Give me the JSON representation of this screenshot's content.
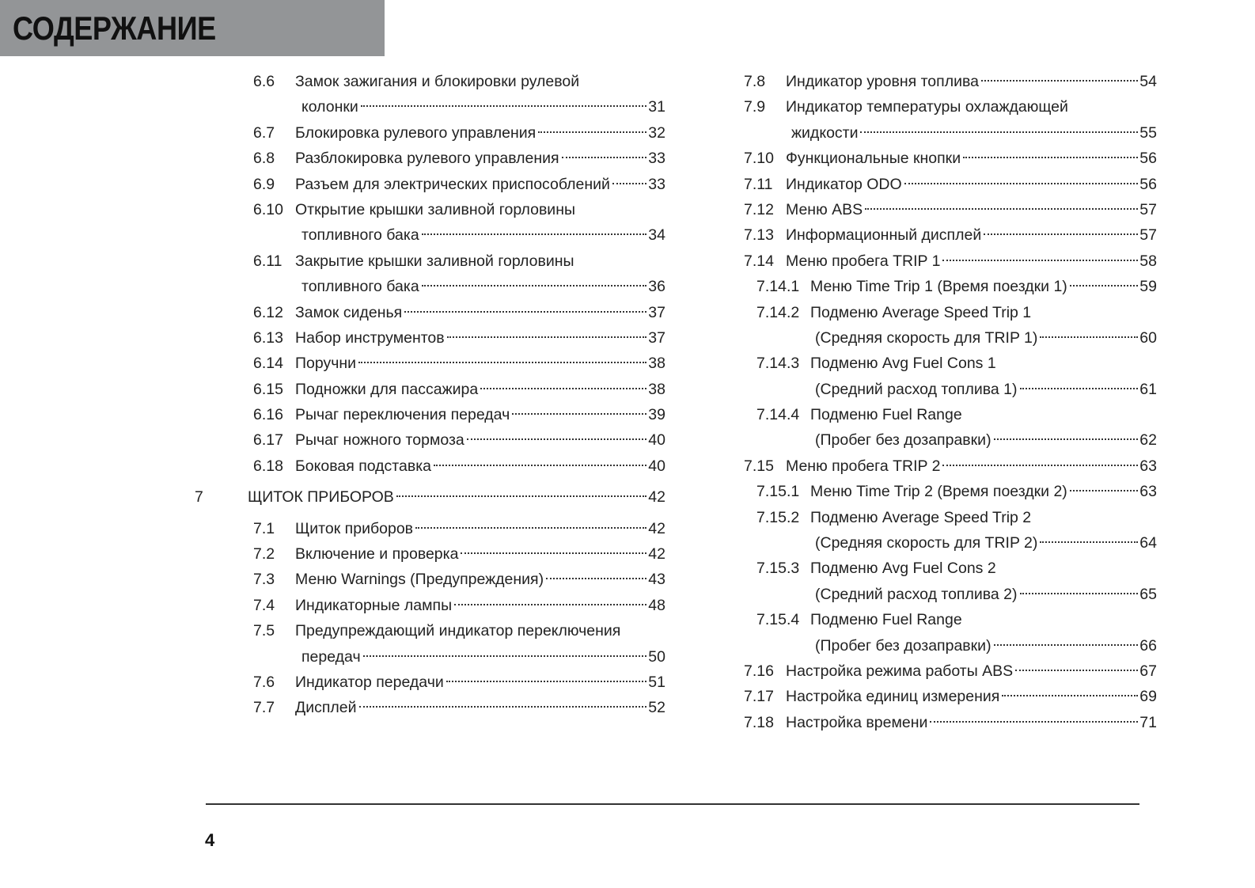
{
  "header": {
    "title": "СОДЕРЖАНИЕ",
    "background": "#939597"
  },
  "left": [
    {
      "num": "6.6",
      "title": "Замок зажигания и блокировки рулевой",
      "cont": "колонки",
      "page": "31"
    },
    {
      "num": "6.7",
      "title": "Блокировка рулевого управления",
      "page": "32"
    },
    {
      "num": "6.8",
      "title": "Разблокировка рулевого управления",
      "page": "33"
    },
    {
      "num": "6.9",
      "title": "Разъем для электрических приспособлений",
      "page": "33"
    },
    {
      "num": "6.10",
      "title": "Открытие крышки заливной горловины",
      "cont": "топливного бака",
      "page": "34"
    },
    {
      "num": "6.11",
      "title": "Закрытие крышки заливной горловины",
      "cont": "топливного бака",
      "page": "36"
    },
    {
      "num": "6.12",
      "title": "Замок сиденья",
      "page": "37"
    },
    {
      "num": "6.13",
      "title": "Набор инструментов",
      "page": "37"
    },
    {
      "num": "6.14",
      "title": "Поручни",
      "page": "38"
    },
    {
      "num": "6.15",
      "title": "Подножки для пассажира",
      "page": "38"
    },
    {
      "num": "6.16",
      "title": "Рычаг переключения передач",
      "page": "39"
    },
    {
      "num": "6.17",
      "title": "Рычаг ножного тормоза",
      "page": "40"
    },
    {
      "num": "6.18",
      "title": "Боковая подставка",
      "page": "40"
    },
    {
      "num": "7",
      "title": "ЩИТОК ПРИБОРОВ",
      "page": "42",
      "chapter": true
    },
    {
      "num": "7.1",
      "title": "Щиток приборов",
      "page": "42"
    },
    {
      "num": "7.2",
      "title": "Включение и проверка",
      "page": "42"
    },
    {
      "num": "7.3",
      "title": "Меню Warnings (Предупреждения)",
      "page": "43"
    },
    {
      "num": "7.4",
      "title": "Индикаторные лампы",
      "page": "48"
    },
    {
      "num": "7.5",
      "title": "Предупреждающий индикатор переключения",
      "cont": "передач",
      "page": "50"
    },
    {
      "num": "7.6",
      "title": "Индикатор передачи",
      "page": "51"
    },
    {
      "num": "7.7",
      "title": "Дисплей",
      "page": "52"
    }
  ],
  "right": [
    {
      "num": "7.8",
      "title": "Индикатор уровня топлива",
      "page": "54"
    },
    {
      "num": "7.9",
      "title": "Индикатор температуры охлаждающей",
      "cont": "жидкости",
      "page": "55"
    },
    {
      "num": "7.10",
      "title": "Функциональные кнопки",
      "page": "56"
    },
    {
      "num": "7.11",
      "title": "Индикатор ODO",
      "page": "56"
    },
    {
      "num": "7.12",
      "title": "Меню ABS",
      "page": "57"
    },
    {
      "num": "7.13",
      "title": "Информационный дисплей",
      "page": "57"
    },
    {
      "num": "7.14",
      "title": "Меню пробега TRIP 1",
      "page": "58"
    },
    {
      "num": "7.14.1",
      "title": "Меню Time Trip 1 (Время поездки 1)",
      "page": "59",
      "sub": true
    },
    {
      "num": "7.14.2",
      "title": "Подменю Average Speed Trip 1",
      "cont": "(Средняя скорость для TRIP 1)",
      "page": "60",
      "sub": true
    },
    {
      "num": "7.14.3",
      "title": "Подменю Avg Fuel Cons 1",
      "cont": "(Средний расход топлива 1)",
      "page": "61",
      "sub": true
    },
    {
      "num": "7.14.4",
      "title": "Подменю Fuel Range",
      "cont": "(Пробег без дозаправки)",
      "page": "62",
      "sub": true
    },
    {
      "num": "7.15",
      "title": "Меню пробега TRIP 2",
      "page": "63"
    },
    {
      "num": "7.15.1",
      "title": "Меню Time Trip 2 (Время поездки 2)",
      "page": "63",
      "sub": true
    },
    {
      "num": "7.15.2",
      "title": "Подменю Average Speed Trip 2",
      "cont": "(Средняя скорость для TRIP 2)",
      "page": "64",
      "sub": true
    },
    {
      "num": "7.15.3",
      "title": "Подменю Avg Fuel Cons 2",
      "cont": "(Средний расход топлива 2)",
      "page": "65",
      "sub": true
    },
    {
      "num": "7.15.4",
      "title": "Подменю Fuel Range",
      "cont": "(Пробег без дозаправки)",
      "page": "66",
      "sub": true
    },
    {
      "num": "7.16",
      "title": "Настройка режима работы ABS",
      "page": "67"
    },
    {
      "num": "7.17",
      "title": "Настройка единиц измерения",
      "page": "69"
    },
    {
      "num": "7.18",
      "title": "Настройка времени",
      "page": "71"
    }
  ],
  "footer": {
    "page_number": "4"
  }
}
